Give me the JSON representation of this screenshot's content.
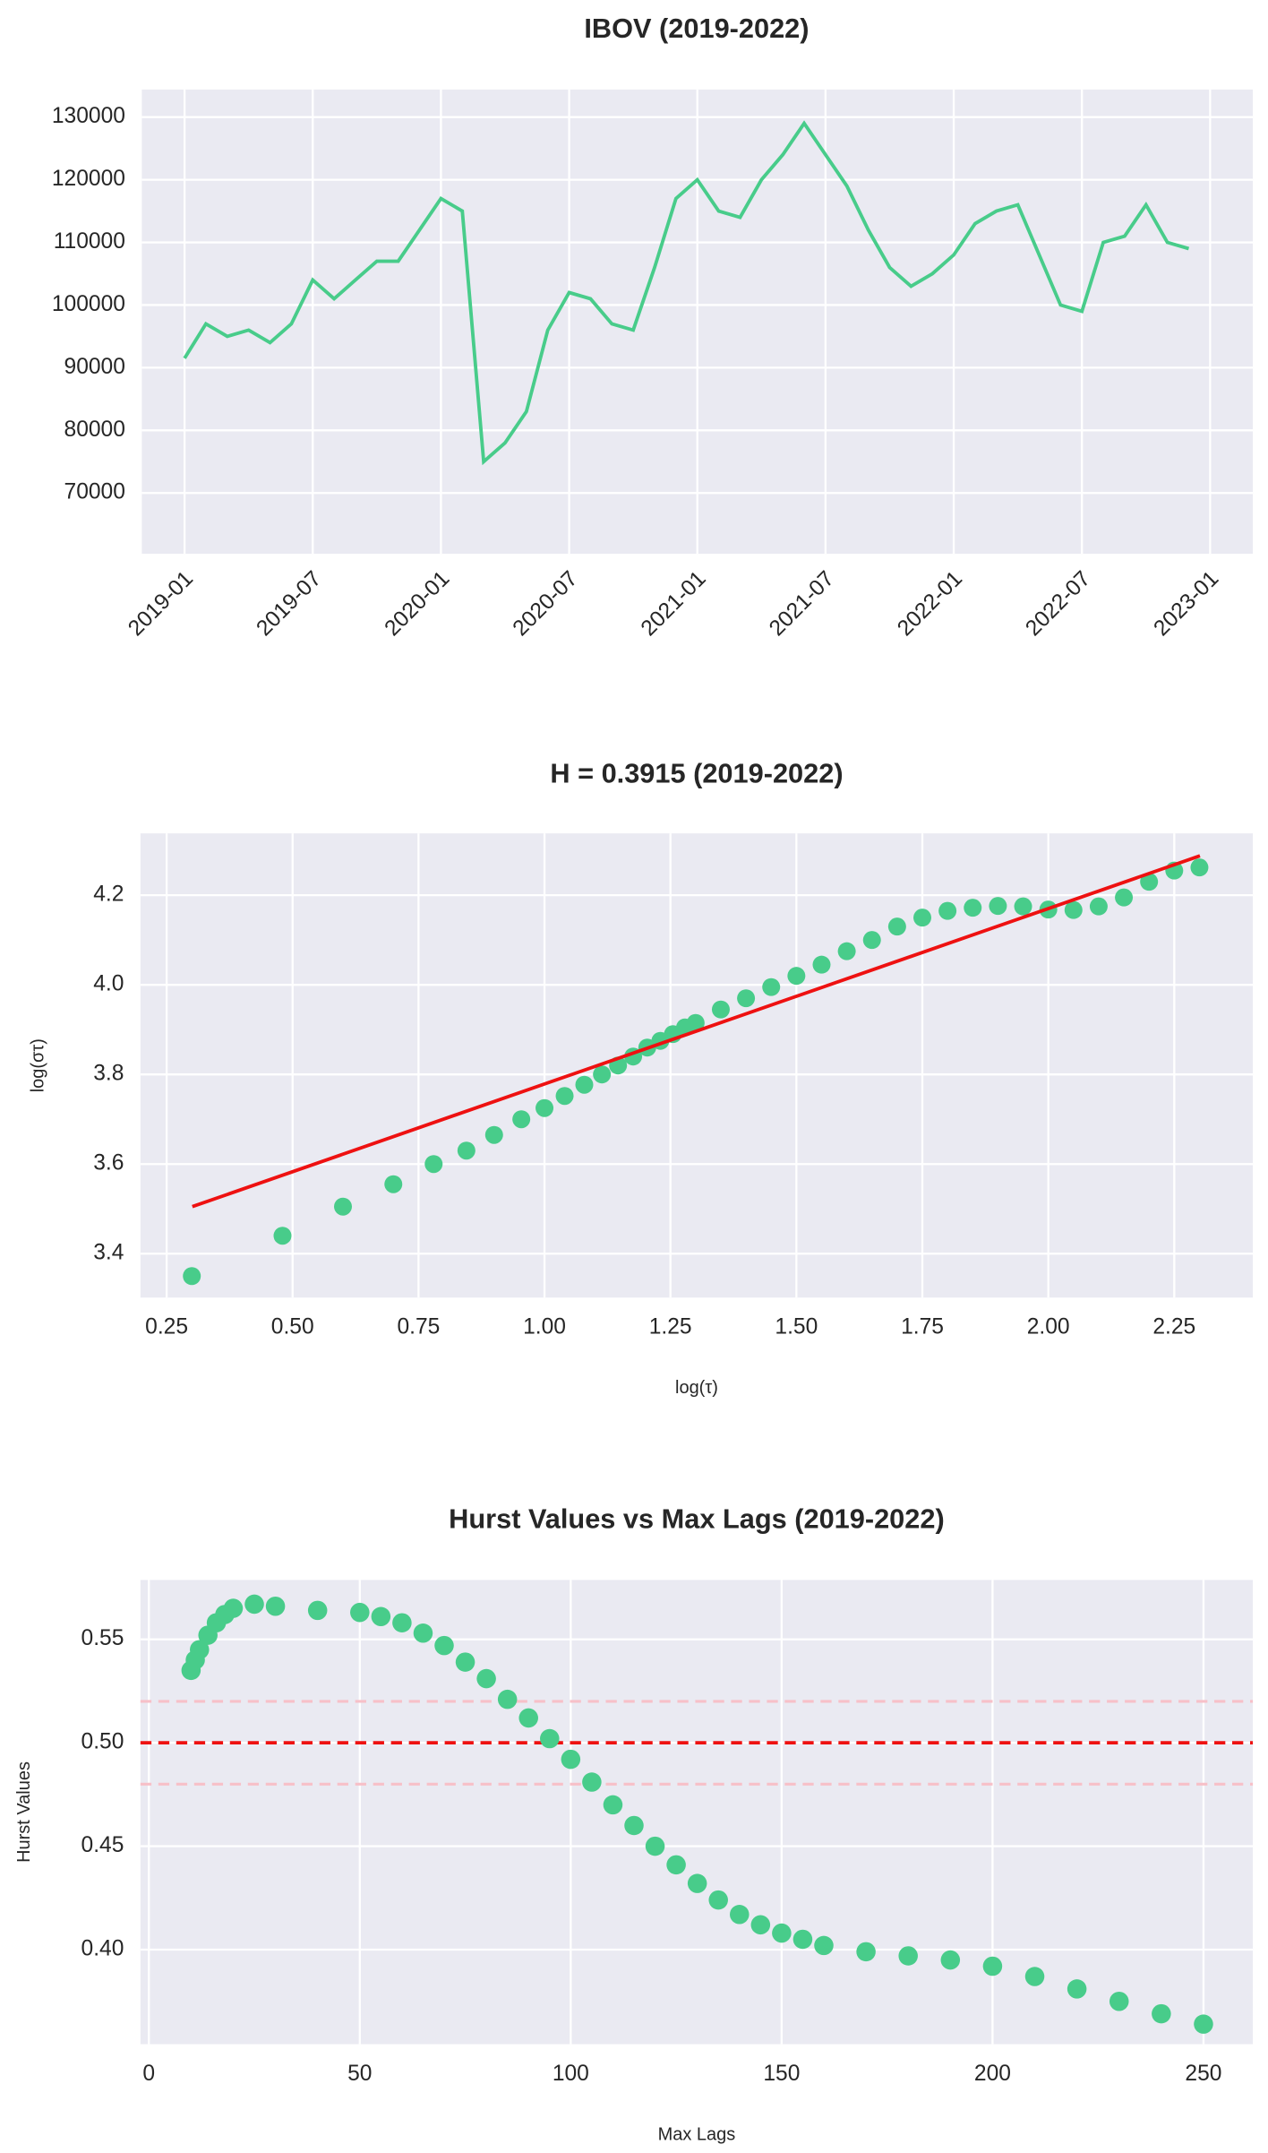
{
  "chart_data": [
    {
      "type": "line",
      "title": "IBOV (2019-2022)",
      "color": "#48cc8a",
      "grid": true,
      "x": [
        "2019-01",
        "2019-02",
        "2019-03",
        "2019-04",
        "2019-05",
        "2019-06",
        "2019-07",
        "2019-08",
        "2019-09",
        "2019-10",
        "2019-11",
        "2019-12",
        "2020-01",
        "2020-02",
        "2020-03",
        "2020-04",
        "2020-05",
        "2020-06",
        "2020-07",
        "2020-08",
        "2020-09",
        "2020-10",
        "2020-11",
        "2020-12",
        "2021-01",
        "2021-02",
        "2021-03",
        "2021-04",
        "2021-05",
        "2021-06",
        "2021-07",
        "2021-08",
        "2021-09",
        "2021-10",
        "2021-11",
        "2021-12",
        "2022-01",
        "2022-02",
        "2022-03",
        "2022-04",
        "2022-05",
        "2022-06",
        "2022-07",
        "2022-08",
        "2022-09",
        "2022-10",
        "2022-11",
        "2022-12"
      ],
      "values": [
        91500,
        97000,
        95000,
        96000,
        94000,
        97000,
        104000,
        101000,
        104000,
        107000,
        107000,
        112000,
        117000,
        115000,
        75000,
        78000,
        83000,
        96000,
        102000,
        101000,
        97000,
        96000,
        106000,
        117000,
        120000,
        115000,
        114000,
        120000,
        124000,
        129000,
        124000,
        119000,
        112000,
        106000,
        103000,
        105000,
        108000,
        113000,
        115000,
        116000,
        108000,
        100000,
        99000,
        110000,
        111000,
        116000,
        110000,
        109000
      ],
      "xlim": [
        "2018-11",
        "2023-03"
      ],
      "xticks": [
        "2019-01",
        "2019-07",
        "2020-01",
        "2020-07",
        "2021-01",
        "2021-07",
        "2022-01",
        "2022-07",
        "2023-01"
      ],
      "ylim": [
        60300,
        134400
      ],
      "yticks": [
        70000,
        80000,
        90000,
        100000,
        110000,
        120000,
        130000
      ]
    },
    {
      "type": "scatter",
      "title": "H = 0.3915 (2019-2022)",
      "x_label": "log(τ)",
      "y_label": "log(στ)",
      "grid": true,
      "series": [
        {
          "color": "#48cc8a",
          "x": [
            0.3,
            0.48,
            0.6,
            0.7,
            0.78,
            0.845,
            0.9,
            0.954,
            1.0,
            1.04,
            1.079,
            1.114,
            1.146,
            1.176,
            1.204,
            1.23,
            1.255,
            1.279,
            1.3,
            1.35,
            1.4,
            1.45,
            1.5,
            1.55,
            1.6,
            1.65,
            1.7,
            1.75,
            1.8,
            1.85,
            1.9,
            1.95,
            2.0,
            2.05,
            2.1,
            2.15,
            2.2,
            2.25,
            2.3
          ],
          "values": [
            3.35,
            3.44,
            3.505,
            3.555,
            3.6,
            3.63,
            3.665,
            3.7,
            3.725,
            3.752,
            3.777,
            3.8,
            3.82,
            3.84,
            3.86,
            3.875,
            3.89,
            3.905,
            3.915,
            3.945,
            3.97,
            3.995,
            4.02,
            4.045,
            4.075,
            4.1,
            4.13,
            4.15,
            4.165,
            4.172,
            4.176,
            4.175,
            4.168,
            4.167,
            4.175,
            4.195,
            4.23,
            4.255,
            4.262
          ]
        },
        {
          "color": "#ee1111",
          "style": "line",
          "x": [
            0.301,
            2.301
          ],
          "values": [
            3.505,
            4.288
          ]
        }
      ],
      "xlim": [
        0.198,
        2.406
      ],
      "xticks": [
        {
          "value": 0.25,
          "label": "0.25"
        },
        {
          "value": 0.5,
          "label": "0.50"
        },
        {
          "value": 0.75,
          "label": "0.75"
        },
        {
          "value": 1.0,
          "label": "1.00"
        },
        {
          "value": 1.25,
          "label": "1.25"
        },
        {
          "value": 1.5,
          "label": "1.50"
        },
        {
          "value": 1.75,
          "label": "1.75"
        },
        {
          "value": 2.0,
          "label": "2.00"
        },
        {
          "value": 2.25,
          "label": "2.25"
        }
      ],
      "ylim": [
        3.302,
        4.338
      ],
      "yticks": [
        3.4,
        3.6,
        3.8,
        {
          "value": 4.0,
          "label": "4.0"
        },
        4.2
      ]
    },
    {
      "type": "scatter",
      "title": "Hurst Values vs Max Lags (2019-2022)",
      "x_label": "Max Lags",
      "y_label": "Hurst Values",
      "grid": true,
      "series": [
        {
          "color": "#48cc8a",
          "x": [
            10,
            11,
            12,
            14,
            16,
            18,
            20,
            25,
            30,
            40,
            50,
            55,
            60,
            65,
            70,
            75,
            80,
            85,
            90,
            95,
            100,
            105,
            110,
            115,
            120,
            125,
            130,
            135,
            140,
            145,
            150,
            155,
            160,
            170,
            180,
            190,
            200,
            210,
            220,
            230,
            240,
            250
          ],
          "values": [
            0.535,
            0.54,
            0.545,
            0.552,
            0.558,
            0.562,
            0.565,
            0.567,
            0.566,
            0.564,
            0.563,
            0.561,
            0.558,
            0.553,
            0.547,
            0.539,
            0.531,
            0.521,
            0.512,
            0.502,
            0.492,
            0.481,
            0.47,
            0.46,
            0.45,
            0.441,
            0.432,
            0.424,
            0.417,
            0.412,
            0.408,
            0.405,
            0.402,
            0.399,
            0.397,
            0.395,
            0.392,
            0.387,
            0.381,
            0.375,
            0.369,
            0.364
          ]
        }
      ],
      "reference_lines": [
        {
          "value": 0.5,
          "color": "#ee1111"
        },
        {
          "value": 0.52,
          "color": "#f7c0c8"
        },
        {
          "value": 0.48,
          "color": "#f7c0c8"
        }
      ],
      "xlim": [
        -2,
        261.7
      ],
      "xticks": [
        0,
        50,
        100,
        150,
        200,
        250
      ],
      "ylim": [
        0.3543,
        0.5787
      ],
      "yticks": [
        {
          "value": 0.4,
          "label": "0.40"
        },
        {
          "value": 0.45,
          "label": "0.45"
        },
        {
          "value": 0.5,
          "label": "0.50"
        },
        {
          "value": 0.55,
          "label": "0.55"
        }
      ]
    }
  ]
}
